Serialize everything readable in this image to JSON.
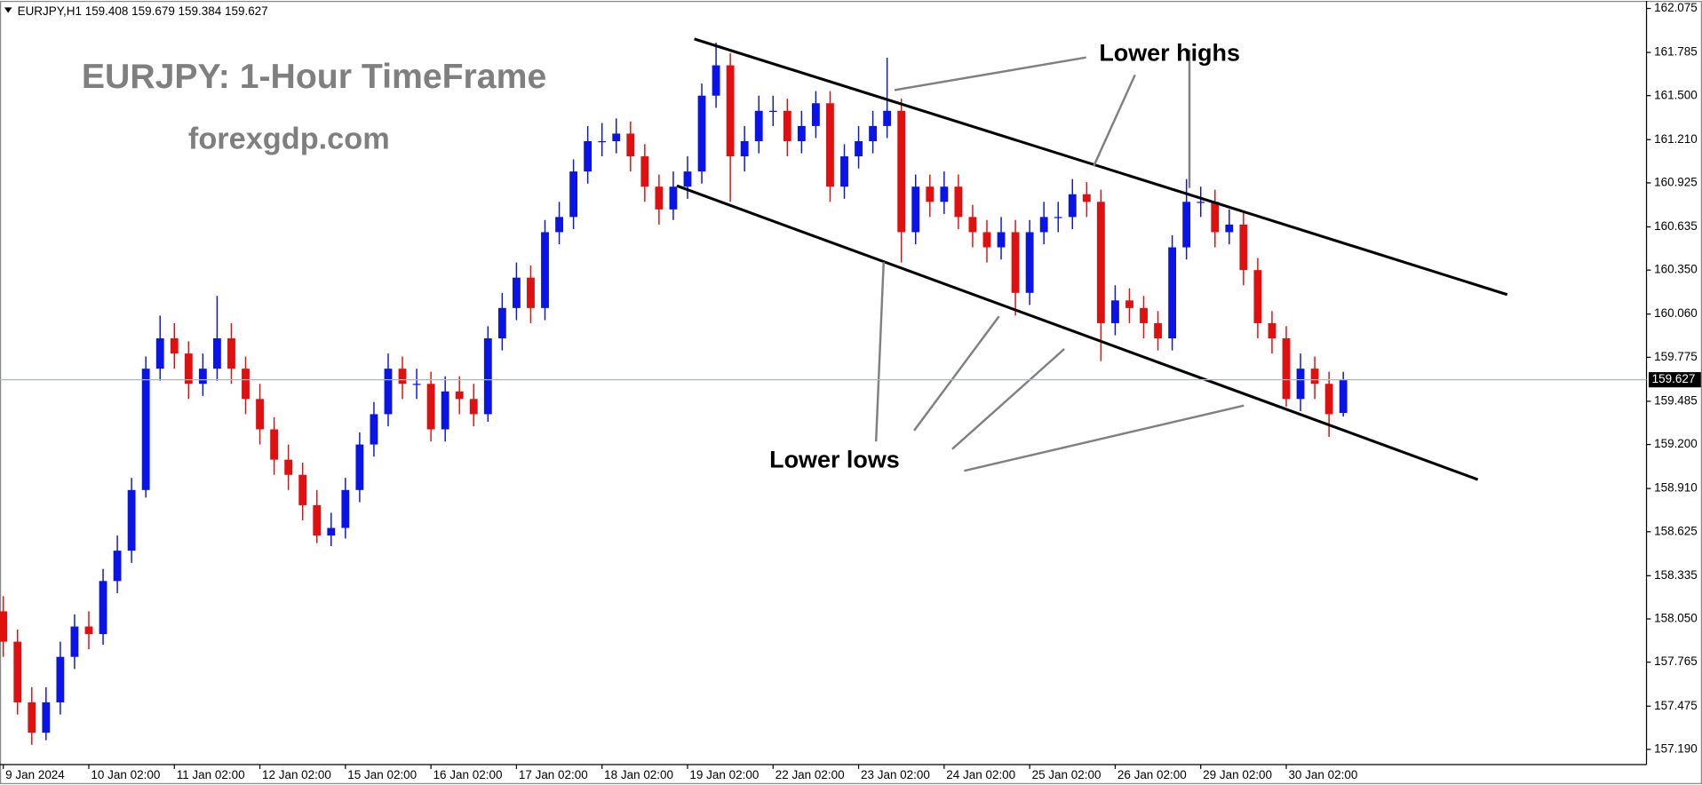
{
  "chart_data": {
    "type": "candlestick",
    "header": "EURJPY,H1  159.408 159.679 159.384 159.627",
    "title": "EURJPY: 1-Hour TimeFrame",
    "subtitle": "forexgdp.com",
    "annotations": [
      "Lower highs",
      "Lower lows"
    ],
    "up_color": "#0a14e6",
    "down_color": "#e01010",
    "price_line_color": "#a8b8c8",
    "current_price": 159.627,
    "xlim": [
      -0.23,
      115.27
    ],
    "ylim": [
      157.09,
      162.125
    ],
    "xticks": [
      {
        "value": 0,
        "label": "9 Jan 2024"
      },
      {
        "value": 6,
        "label": "10 Jan 02:00"
      },
      {
        "value": 12,
        "label": "11 Jan 02:00"
      },
      {
        "value": 18,
        "label": "12 Jan 02:00"
      },
      {
        "value": 24,
        "label": "15 Jan 02:00"
      },
      {
        "value": 30,
        "label": "16 Jan 02:00"
      },
      {
        "value": 36,
        "label": "17 Jan 02:00"
      },
      {
        "value": 42,
        "label": "18 Jan 02:00"
      },
      {
        "value": 48,
        "label": "19 Jan 02:00"
      },
      {
        "value": 54,
        "label": "22 Jan 02:00"
      },
      {
        "value": 60,
        "label": "23 Jan 02:00"
      },
      {
        "value": 66,
        "label": "24 Jan 02:00"
      },
      {
        "value": 72,
        "label": "25 Jan 02:00"
      },
      {
        "value": 78,
        "label": "26 Jan 02:00"
      },
      {
        "value": 84,
        "label": "29 Jan 02:00"
      },
      {
        "value": 90,
        "label": "30 Jan 02:00"
      }
    ],
    "yticks": [
      162.075,
      161.785,
      {
        "value": 161.5,
        "label": "161.500"
      },
      {
        "value": 161.21,
        "label": "161.210"
      },
      160.925,
      160.635,
      {
        "value": 160.35,
        "label": "160.350"
      },
      {
        "value": 160.06,
        "label": "160.060"
      },
      159.775,
      159.485,
      {
        "value": 159.2,
        "label": "159.200"
      },
      {
        "value": 158.91,
        "label": "158.910"
      },
      158.625,
      158.335,
      {
        "value": 158.05,
        "label": "158.050"
      },
      157.765,
      157.475,
      {
        "value": 157.19,
        "label": "157.190"
      }
    ],
    "open": [
      158.1,
      157.9,
      157.5,
      157.3,
      157.5,
      157.8,
      158.0,
      157.95,
      158.3,
      158.5,
      158.9,
      159.7,
      159.9,
      159.8,
      159.6,
      159.7,
      159.9,
      159.7,
      159.5,
      159.3,
      159.1,
      159.0,
      158.8,
      158.6,
      158.65,
      158.9,
      159.2,
      159.4,
      159.7,
      159.6,
      159.6,
      159.3,
      159.55,
      159.5,
      159.4,
      159.9,
      160.1,
      160.3,
      160.1,
      160.6,
      160.7,
      161.0,
      161.2,
      161.2,
      161.25,
      161.1,
      160.9,
      160.75,
      160.9,
      161.0,
      161.5,
      161.7,
      161.1,
      161.2,
      161.4,
      161.4,
      161.2,
      161.3,
      161.45,
      160.9,
      161.1,
      161.2,
      161.3,
      161.4,
      160.6,
      160.9,
      160.8,
      160.9,
      160.7,
      160.6,
      160.5,
      160.6,
      160.2,
      160.6,
      160.7,
      160.7,
      160.85,
      160.8,
      160.0,
      160.15,
      160.1,
      160.0,
      159.9,
      160.5,
      160.8,
      160.8,
      160.6,
      160.65,
      160.35,
      160.0,
      159.9,
      159.5,
      159.7,
      159.6,
      159.408
    ],
    "high": [
      158.2,
      157.98,
      157.6,
      157.6,
      157.9,
      158.08,
      158.1,
      158.38,
      158.6,
      158.98,
      159.78,
      160.05,
      160.0,
      159.88,
      159.8,
      160.18,
      160.0,
      159.78,
      159.6,
      159.38,
      159.2,
      159.08,
      158.9,
      158.75,
      158.98,
      159.28,
      159.48,
      159.8,
      159.78,
      159.7,
      159.68,
      159.65,
      159.65,
      159.6,
      159.98,
      160.2,
      160.4,
      160.38,
      160.68,
      160.8,
      161.08,
      161.3,
      161.32,
      161.35,
      161.33,
      161.18,
      160.98,
      161.0,
      161.1,
      161.58,
      161.85,
      161.78,
      161.3,
      161.5,
      161.5,
      161.48,
      161.4,
      161.53,
      161.53,
      161.18,
      161.3,
      161.4,
      161.75,
      161.48,
      160.98,
      160.98,
      161.0,
      160.98,
      160.78,
      160.68,
      160.7,
      160.68,
      160.68,
      160.8,
      160.8,
      160.95,
      160.93,
      160.88,
      160.25,
      160.23,
      160.18,
      160.08,
      160.58,
      160.95,
      160.9,
      160.88,
      160.75,
      160.73,
      160.43,
      160.08,
      159.98,
      159.8,
      159.78,
      159.68,
      159.679
    ],
    "low": [
      157.8,
      157.42,
      157.22,
      157.25,
      157.42,
      157.72,
      157.85,
      157.88,
      158.22,
      158.42,
      158.85,
      159.62,
      159.7,
      159.5,
      159.52,
      159.62,
      159.6,
      159.4,
      159.2,
      159.0,
      158.9,
      158.7,
      158.55,
      158.53,
      158.58,
      158.82,
      159.12,
      159.32,
      159.5,
      159.5,
      159.22,
      159.22,
      159.4,
      159.32,
      159.35,
      159.82,
      160.02,
      160.0,
      160.02,
      160.52,
      160.62,
      160.92,
      161.1,
      161.12,
      161.0,
      160.8,
      160.65,
      160.68,
      160.82,
      160.92,
      161.42,
      160.8,
      161.0,
      161.12,
      161.3,
      161.1,
      161.12,
      161.22,
      160.8,
      160.82,
      161.02,
      161.12,
      161.22,
      160.4,
      160.52,
      160.7,
      160.72,
      160.62,
      160.5,
      160.4,
      160.42,
      160.05,
      160.12,
      160.52,
      160.6,
      160.62,
      160.7,
      159.75,
      159.92,
      160.0,
      159.9,
      159.82,
      159.82,
      160.42,
      160.7,
      160.5,
      160.52,
      160.25,
      159.9,
      159.8,
      159.45,
      159.42,
      159.5,
      159.25,
      159.384
    ],
    "close": [
      157.9,
      157.5,
      157.3,
      157.5,
      157.8,
      158.0,
      157.95,
      158.3,
      158.5,
      158.9,
      159.7,
      159.9,
      159.8,
      159.6,
      159.7,
      159.9,
      159.7,
      159.5,
      159.3,
      159.1,
      159.0,
      158.8,
      158.6,
      158.65,
      158.9,
      159.2,
      159.4,
      159.7,
      159.6,
      159.6,
      159.3,
      159.55,
      159.5,
      159.4,
      159.9,
      160.1,
      160.3,
      160.1,
      160.6,
      160.7,
      161.0,
      161.2,
      161.2,
      161.25,
      161.1,
      160.9,
      160.75,
      160.9,
      161.0,
      161.5,
      161.7,
      161.1,
      161.2,
      161.4,
      161.4,
      161.2,
      161.3,
      161.45,
      160.9,
      161.1,
      161.2,
      161.3,
      161.4,
      160.6,
      160.9,
      160.8,
      160.9,
      160.7,
      160.6,
      160.5,
      160.6,
      160.2,
      160.6,
      160.7,
      160.7,
      160.85,
      160.8,
      160.0,
      160.15,
      160.1,
      160.0,
      159.9,
      160.5,
      160.8,
      160.8,
      160.6,
      160.65,
      160.35,
      160.0,
      159.9,
      159.5,
      159.7,
      159.6,
      159.4,
      159.627
    ]
  }
}
